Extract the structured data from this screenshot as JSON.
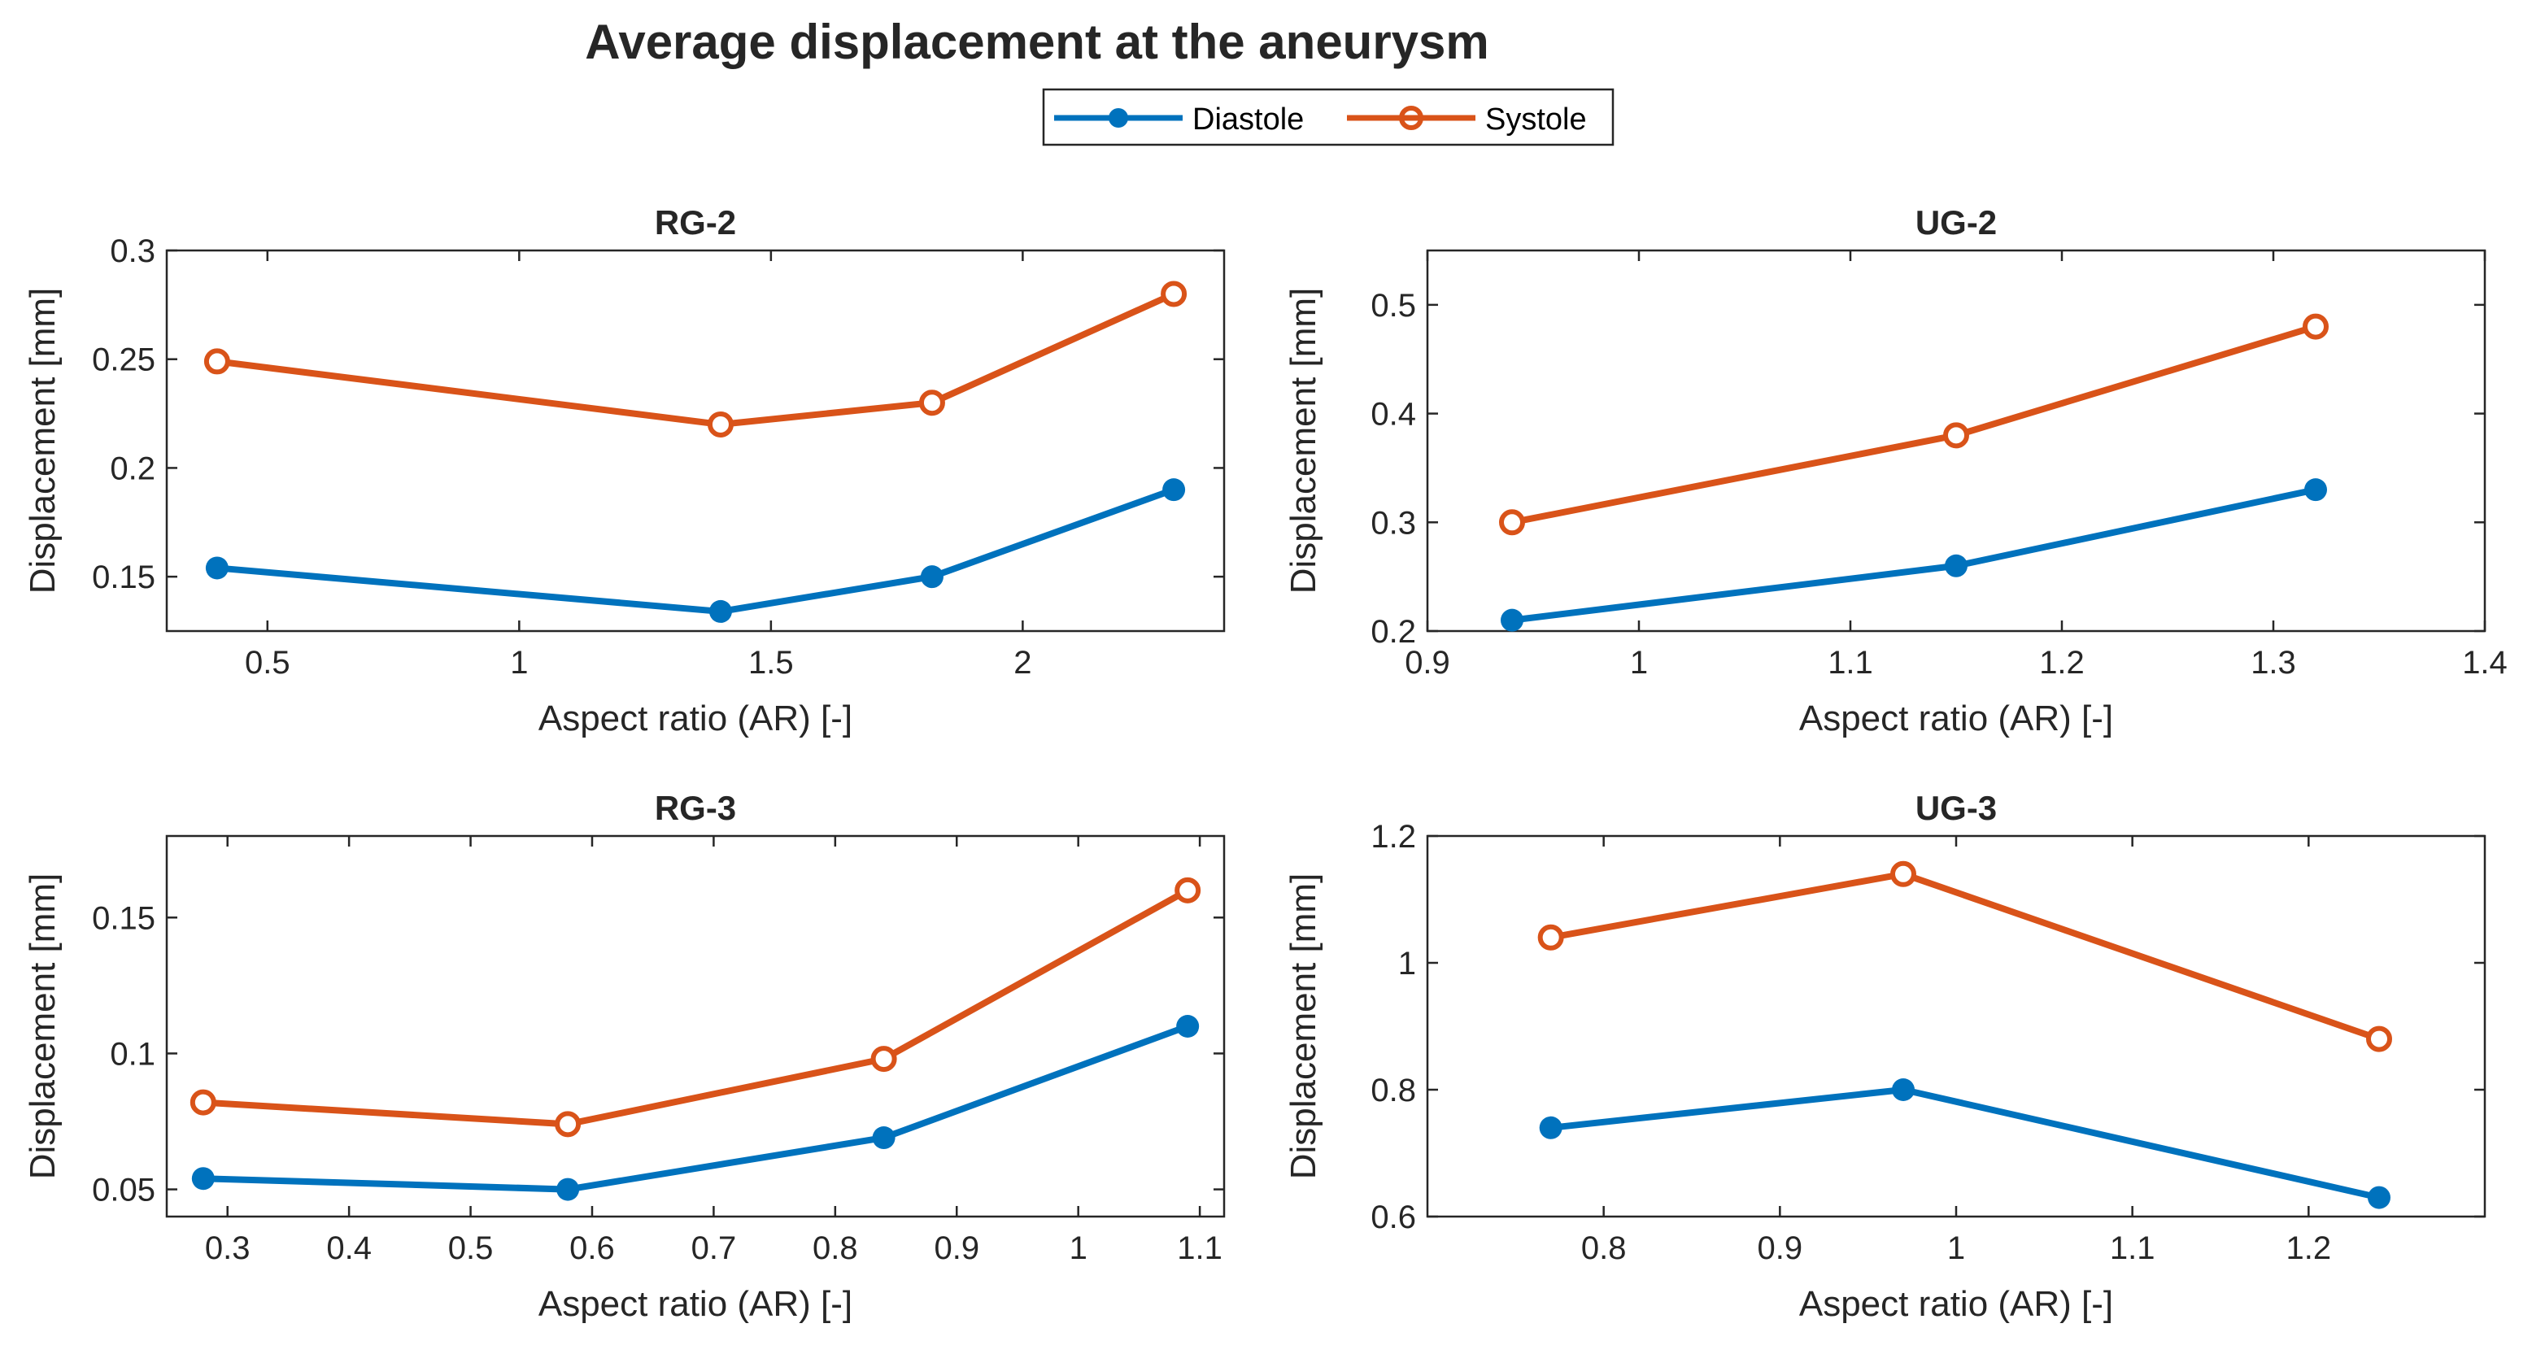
{
  "figure": {
    "title": "Average displacement at the aneurysm"
  },
  "legend": {
    "entries": [
      {
        "label": "Diastole",
        "color": "#0072BD",
        "marker": "filled-circle"
      },
      {
        "label": "Systole",
        "color": "#D95319",
        "marker": "open-circle"
      }
    ]
  },
  "chart_data": [
    {
      "type": "line",
      "title": "RG-2",
      "xlabel": "Aspect ratio (AR) [-]",
      "ylabel": "Displacement [mm]",
      "xlim": [
        0.3,
        2.4
      ],
      "ylim": [
        0.125,
        0.3
      ],
      "xticks": [
        0.5,
        1,
        1.5,
        2
      ],
      "xtick_labels": [
        "0.5",
        "1",
        "1.5",
        "2"
      ],
      "yticks": [
        0.15,
        0.2,
        0.25,
        0.3
      ],
      "ytick_labels": [
        "0.15",
        "0.2",
        "0.25",
        "0.3"
      ],
      "x": [
        0.4,
        1.4,
        1.82,
        2.3
      ],
      "series": [
        {
          "name": "Diastole",
          "values": [
            0.154,
            0.134,
            0.15,
            0.19
          ]
        },
        {
          "name": "Systole",
          "values": [
            0.249,
            0.22,
            0.23,
            0.28
          ]
        }
      ]
    },
    {
      "type": "line",
      "title": "UG-2",
      "xlabel": "Aspect ratio (AR) [-]",
      "ylabel": "Displacement [mm]",
      "xlim": [
        0.9,
        1.4
      ],
      "ylim": [
        0.2,
        0.55
      ],
      "xticks": [
        0.9,
        1,
        1.1,
        1.2,
        1.3,
        1.4
      ],
      "xtick_labels": [
        "0.9",
        "1",
        "1.1",
        "1.2",
        "1.3",
        "1.4"
      ],
      "yticks": [
        0.2,
        0.3,
        0.4,
        0.5
      ],
      "ytick_labels": [
        "0.2",
        "0.3",
        "0.4",
        "0.5"
      ],
      "x": [
        0.94,
        1.15,
        1.32
      ],
      "series": [
        {
          "name": "Diastole",
          "values": [
            0.21,
            0.26,
            0.33
          ]
        },
        {
          "name": "Systole",
          "values": [
            0.3,
            0.38,
            0.48
          ]
        }
      ]
    },
    {
      "type": "line",
      "title": "RG-3",
      "xlabel": "Aspect ratio (AR) [-]",
      "ylabel": "Displacement [mm]",
      "xlim": [
        0.25,
        1.12
      ],
      "ylim": [
        0.04,
        0.18
      ],
      "xticks": [
        0.3,
        0.4,
        0.5,
        0.6,
        0.7,
        0.8,
        0.9,
        1,
        1.1
      ],
      "xtick_labels": [
        "0.3",
        "0.4",
        "0.5",
        "0.6",
        "0.7",
        "0.8",
        "0.9",
        "1",
        "1.1"
      ],
      "yticks": [
        0.05,
        0.1,
        0.15
      ],
      "ytick_labels": [
        "0.05",
        "0.1",
        "0.15"
      ],
      "x": [
        0.28,
        0.58,
        0.84,
        1.09
      ],
      "series": [
        {
          "name": "Diastole",
          "values": [
            0.054,
            0.05,
            0.069,
            0.11
          ]
        },
        {
          "name": "Systole",
          "values": [
            0.082,
            0.074,
            0.098,
            0.16
          ]
        }
      ]
    },
    {
      "type": "line",
      "title": "UG-3",
      "xlabel": "Aspect ratio (AR) [-]",
      "ylabel": "Displacement [mm]",
      "xlim": [
        0.7,
        1.3
      ],
      "ylim": [
        0.6,
        1.2
      ],
      "xticks": [
        0.8,
        0.9,
        1,
        1.1,
        1.2
      ],
      "xtick_labels": [
        "0.8",
        "0.9",
        "1",
        "1.1",
        "1.2"
      ],
      "yticks": [
        0.6,
        0.8,
        1,
        1.2
      ],
      "ytick_labels": [
        "0.6",
        "0.8",
        "1",
        "1.2"
      ],
      "x": [
        0.77,
        0.97,
        1.24
      ],
      "series": [
        {
          "name": "Diastole",
          "values": [
            0.74,
            0.8,
            0.63
          ]
        },
        {
          "name": "Systole",
          "values": [
            1.04,
            1.14,
            0.88
          ]
        }
      ]
    }
  ]
}
